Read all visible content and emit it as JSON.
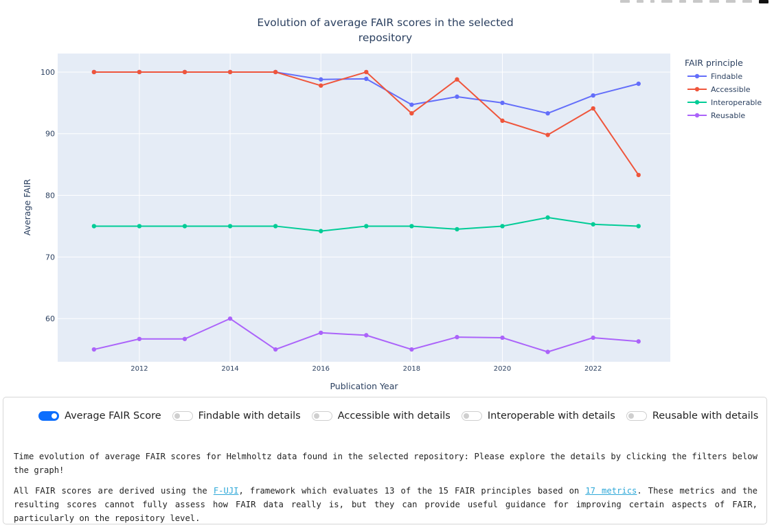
{
  "chart_data": {
    "type": "line",
    "title_lines": [
      "Evolution of average FAIR scores in the selected",
      "repository"
    ],
    "xlabel": "Publication Year",
    "ylabel": "Average FAIR",
    "xlim": [
      2010.2,
      2023.7
    ],
    "ylim": [
      53,
      103
    ],
    "xticks": [
      2012,
      2014,
      2016,
      2018,
      2020,
      2022
    ],
    "yticks": [
      60,
      70,
      80,
      90,
      100
    ],
    "grid": true,
    "legend_title": "FAIR principle",
    "legend_position": "right",
    "x": [
      2011,
      2012,
      2013,
      2014,
      2015,
      2016,
      2017,
      2018,
      2019,
      2020,
      2021,
      2022,
      2023
    ],
    "series": [
      {
        "name": "Findable",
        "color": "#636efa",
        "values": [
          100,
          100,
          100,
          100,
          100,
          98.8,
          98.9,
          94.7,
          96.0,
          95.0,
          93.3,
          96.2,
          98.1
        ]
      },
      {
        "name": "Accessible",
        "color": "#ef553b",
        "values": [
          100,
          100,
          100,
          100,
          100,
          97.8,
          100,
          93.3,
          98.8,
          92.1,
          89.8,
          94.1,
          83.3
        ]
      },
      {
        "name": "Interoperable",
        "color": "#00cc96",
        "values": [
          75,
          75,
          75,
          75,
          75,
          74.2,
          75,
          75,
          74.5,
          75,
          76.4,
          75.3,
          75
        ]
      },
      {
        "name": "Reusable",
        "color": "#ab63fa",
        "values": [
          55,
          56.7,
          56.7,
          60,
          55,
          57.7,
          57.3,
          55,
          57.0,
          56.9,
          54.6,
          56.9,
          56.3
        ]
      }
    ]
  },
  "controls": {
    "toggles": [
      {
        "label": "Average FAIR Score",
        "on": true
      },
      {
        "label": "Findable with details",
        "on": false
      },
      {
        "label": "Accessible with details",
        "on": false
      },
      {
        "label": "Interoperable with details",
        "on": false
      },
      {
        "label": "Reusable with details",
        "on": false
      }
    ]
  },
  "description": {
    "para1": "Time evolution of average FAIR scores for Helmholtz data found in the selected repository: Please explore the details by clicking the filters below the graph!",
    "para2_a": "All FAIR scores are derived using the ",
    "link1": "F-UJI",
    "para2_b": ", framework which evaluates 13 of the 15 FAIR principles based on ",
    "link2": "17 metrics",
    "para2_c": ". These metrics and the resulting scores cannot fully assess how FAIR data really is, but they can provide useful guidance for improving certain aspects of FAIR, particularly on the repository level."
  },
  "colors": {
    "plot_background": "#e5ecf6",
    "grid": "#ffffff",
    "text": "#2a3f5f",
    "accent": "#0d6efd",
    "link": "#2ea8d8"
  }
}
